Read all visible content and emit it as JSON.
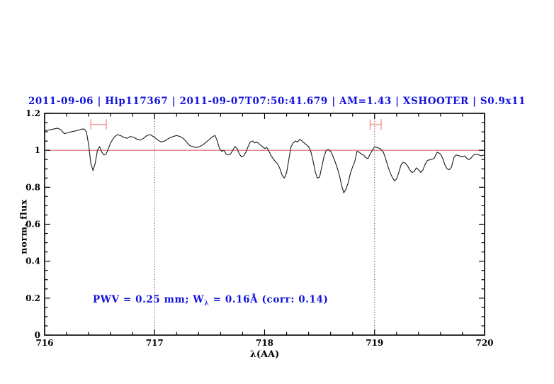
{
  "title": {
    "text": "2011-09-06 | Hip117367 | 2011-09-07T07:50:41.679 | AM=1.43 | XSHOOTER | S0.9x11",
    "color": "#1212dd"
  },
  "annotation": {
    "pre": "PWV = 0.25 mm; W",
    "sub": "λ",
    "post": " = 0.16Å (corr: 0.14)",
    "color": "#1212dd"
  },
  "colors": {
    "background": "#ffffff",
    "axis": "#000000",
    "spectrum": "#1a1a1a",
    "continuum_line": "#e06060",
    "bracket": "#f2a2a2",
    "guide_line": "#2a2a2a",
    "text_blue": "#1212dd"
  },
  "chart_data": {
    "type": "line",
    "title": "2011-09-06 | Hip117367 | 2011-09-07T07:50:41.679 | AM=1.43 | XSHOOTER | S0.9x11",
    "xlabel": "λ(AA)",
    "ylabel": "norm. flux",
    "xlim": [
      716,
      720
    ],
    "ylim": [
      0,
      1.2
    ],
    "grid": false,
    "legend": "none",
    "x_major_ticks": [
      716,
      717,
      718,
      719,
      720
    ],
    "x_tick_labels": [
      "716",
      "717",
      "718",
      "719",
      "720"
    ],
    "x_minor_step": 0.2,
    "y_major_ticks": [
      0,
      0.2,
      0.4,
      0.6,
      0.8,
      1,
      1.2
    ],
    "y_tick_labels": [
      "0",
      "0.2",
      "0.4",
      "0.6",
      "0.8",
      "1",
      "1.2"
    ],
    "y_minor_step": 0.05,
    "reference_line": {
      "y": 1.0
    },
    "guide_lines_x": [
      717,
      719
    ],
    "measurement_brackets": [
      {
        "x1": 716.42,
        "x2": 716.56,
        "y": 1.14,
        "cap_half": 0.028
      },
      {
        "x1": 718.96,
        "x2": 719.06,
        "y": 1.14,
        "cap_half": 0.028
      }
    ],
    "annotations": [
      "PWV = 0.25 mm; Wλ = 0.16Å (corr: 0.14)"
    ],
    "series": [
      {
        "name": "normalized spectrum",
        "points": [
          [
            716.0,
            1.105
          ],
          [
            716.04,
            1.11
          ],
          [
            716.08,
            1.115
          ],
          [
            716.12,
            1.12
          ],
          [
            716.15,
            1.11
          ],
          [
            716.18,
            1.09
          ],
          [
            716.21,
            1.095
          ],
          [
            716.24,
            1.1
          ],
          [
            716.28,
            1.105
          ],
          [
            716.31,
            1.11
          ],
          [
            716.34,
            1.115
          ],
          [
            716.36,
            1.115
          ],
          [
            716.38,
            1.1
          ],
          [
            716.4,
            1.03
          ],
          [
            716.42,
            0.93
          ],
          [
            716.44,
            0.89
          ],
          [
            716.46,
            0.93
          ],
          [
            716.48,
            1.0
          ],
          [
            716.5,
            1.02
          ],
          [
            716.52,
            0.99
          ],
          [
            716.54,
            0.975
          ],
          [
            716.56,
            0.98
          ],
          [
            716.58,
            1.01
          ],
          [
            716.6,
            1.04
          ],
          [
            716.63,
            1.07
          ],
          [
            716.66,
            1.085
          ],
          [
            716.69,
            1.08
          ],
          [
            716.72,
            1.07
          ],
          [
            716.75,
            1.065
          ],
          [
            716.78,
            1.075
          ],
          [
            716.81,
            1.07
          ],
          [
            716.84,
            1.06
          ],
          [
            716.87,
            1.055
          ],
          [
            716.9,
            1.065
          ],
          [
            716.93,
            1.08
          ],
          [
            716.96,
            1.085
          ],
          [
            717.0,
            1.07
          ],
          [
            717.03,
            1.055
          ],
          [
            717.06,
            1.045
          ],
          [
            717.09,
            1.05
          ],
          [
            717.13,
            1.065
          ],
          [
            717.17,
            1.075
          ],
          [
            717.2,
            1.08
          ],
          [
            717.23,
            1.075
          ],
          [
            717.26,
            1.065
          ],
          [
            717.29,
            1.045
          ],
          [
            717.32,
            1.025
          ],
          [
            717.35,
            1.02
          ],
          [
            717.38,
            1.015
          ],
          [
            717.41,
            1.02
          ],
          [
            717.44,
            1.03
          ],
          [
            717.47,
            1.045
          ],
          [
            717.5,
            1.06
          ],
          [
            717.53,
            1.075
          ],
          [
            717.55,
            1.08
          ],
          [
            717.57,
            1.05
          ],
          [
            717.59,
            1.01
          ],
          [
            717.61,
            0.995
          ],
          [
            717.63,
            1.0
          ],
          [
            717.65,
            0.98
          ],
          [
            717.67,
            0.975
          ],
          [
            717.69,
            0.98
          ],
          [
            717.71,
            1.0
          ],
          [
            717.73,
            1.02
          ],
          [
            717.75,
            1.01
          ],
          [
            717.77,
            0.98
          ],
          [
            717.79,
            0.965
          ],
          [
            717.81,
            0.97
          ],
          [
            717.83,
            0.99
          ],
          [
            717.85,
            1.02
          ],
          [
            717.87,
            1.045
          ],
          [
            717.89,
            1.05
          ],
          [
            717.91,
            1.04
          ],
          [
            717.93,
            1.045
          ],
          [
            717.95,
            1.035
          ],
          [
            717.98,
            1.02
          ],
          [
            718.0,
            1.01
          ],
          [
            718.02,
            1.015
          ],
          [
            718.04,
            0.995
          ],
          [
            718.06,
            0.97
          ],
          [
            718.09,
            0.945
          ],
          [
            718.12,
            0.925
          ],
          [
            718.14,
            0.9
          ],
          [
            718.16,
            0.865
          ],
          [
            718.18,
            0.85
          ],
          [
            718.2,
            0.88
          ],
          [
            718.22,
            0.95
          ],
          [
            718.24,
            1.02
          ],
          [
            718.26,
            1.04
          ],
          [
            718.28,
            1.05
          ],
          [
            718.3,
            1.045
          ],
          [
            718.32,
            1.06
          ],
          [
            718.34,
            1.05
          ],
          [
            718.36,
            1.04
          ],
          [
            718.38,
            1.03
          ],
          [
            718.4,
            1.02
          ],
          [
            718.42,
            0.995
          ],
          [
            718.44,
            0.945
          ],
          [
            718.46,
            0.885
          ],
          [
            718.48,
            0.85
          ],
          [
            718.5,
            0.855
          ],
          [
            718.52,
            0.91
          ],
          [
            718.54,
            0.965
          ],
          [
            718.56,
            1.0
          ],
          [
            718.58,
            1.005
          ],
          [
            718.6,
            0.995
          ],
          [
            718.62,
            0.97
          ],
          [
            718.64,
            0.94
          ],
          [
            718.66,
            0.905
          ],
          [
            718.68,
            0.865
          ],
          [
            718.7,
            0.81
          ],
          [
            718.72,
            0.77
          ],
          [
            718.74,
            0.79
          ],
          [
            718.76,
            0.825
          ],
          [
            718.78,
            0.875
          ],
          [
            718.8,
            0.91
          ],
          [
            718.82,
            0.94
          ],
          [
            718.84,
            0.995
          ],
          [
            718.86,
            0.99
          ],
          [
            718.88,
            0.98
          ],
          [
            718.9,
            0.975
          ],
          [
            718.92,
            0.96
          ],
          [
            718.94,
            0.955
          ],
          [
            718.96,
            0.98
          ],
          [
            718.98,
            1.0
          ],
          [
            719.0,
            1.02
          ],
          [
            719.02,
            1.015
          ],
          [
            719.05,
            1.01
          ],
          [
            719.08,
            0.99
          ],
          [
            719.1,
            0.955
          ],
          [
            719.12,
            0.915
          ],
          [
            719.14,
            0.88
          ],
          [
            719.16,
            0.855
          ],
          [
            719.18,
            0.835
          ],
          [
            719.2,
            0.845
          ],
          [
            719.22,
            0.88
          ],
          [
            719.24,
            0.92
          ],
          [
            719.26,
            0.935
          ],
          [
            719.28,
            0.93
          ],
          [
            719.3,
            0.915
          ],
          [
            719.32,
            0.895
          ],
          [
            719.34,
            0.88
          ],
          [
            719.36,
            0.885
          ],
          [
            719.38,
            0.905
          ],
          [
            719.4,
            0.895
          ],
          [
            719.42,
            0.88
          ],
          [
            719.44,
            0.895
          ],
          [
            719.46,
            0.925
          ],
          [
            719.48,
            0.945
          ],
          [
            719.51,
            0.95
          ],
          [
            719.54,
            0.955
          ],
          [
            719.57,
            0.99
          ],
          [
            719.6,
            0.98
          ],
          [
            719.62,
            0.955
          ],
          [
            719.64,
            0.92
          ],
          [
            719.66,
            0.9
          ],
          [
            719.68,
            0.895
          ],
          [
            719.7,
            0.91
          ],
          [
            719.72,
            0.96
          ],
          [
            719.74,
            0.975
          ],
          [
            719.77,
            0.97
          ],
          [
            719.8,
            0.965
          ],
          [
            719.82,
            0.97
          ],
          [
            719.84,
            0.955
          ],
          [
            719.86,
            0.95
          ],
          [
            719.88,
            0.96
          ],
          [
            719.9,
            0.975
          ],
          [
            719.92,
            0.98
          ],
          [
            719.95,
            0.975
          ],
          [
            719.97,
            0.97
          ],
          [
            720.0,
            0.975
          ]
        ]
      }
    ]
  }
}
